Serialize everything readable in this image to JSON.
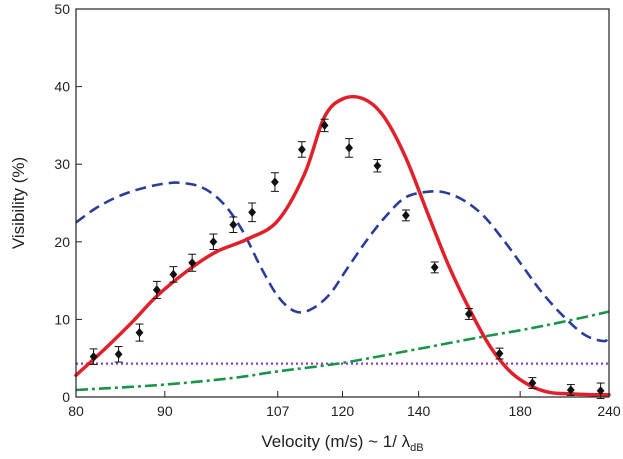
{
  "chart_data": {
    "type": "scatter",
    "title": "",
    "xlabel": "Velocity  (m/s) ~ 1/ λ",
    "xlabel_sub": "dB",
    "ylabel": "Visibility   (%)",
    "x_scale": "inverse",
    "xlim": [
      80,
      240
    ],
    "ylim": [
      0,
      50
    ],
    "x_ticks": [
      80,
      90,
      107,
      120,
      140,
      180,
      240
    ],
    "x_tick_labels": [
      "80",
      "90",
      "107",
      "120",
      "140",
      "180",
      "240"
    ],
    "y_ticks": [
      0,
      10,
      20,
      30,
      40,
      50
    ],
    "y_tick_labels": [
      "0",
      "10",
      "20",
      "30",
      "40",
      "50"
    ],
    "grid": false,
    "series": [
      {
        "name": "measured visibility",
        "kind": "points",
        "marker": "diamond",
        "color": "#111111",
        "x": [
          81.8,
          84.5,
          86.9,
          89.0,
          91.1,
          93.6,
          96.6,
          99.6,
          102.6,
          106.5,
          111.5,
          116.1,
          121.5,
          128.4,
          136.2,
          145.1,
          157.3,
          170.1,
          186.4,
          209.9,
          232.7
        ],
        "y": [
          5.2,
          5.5,
          8.3,
          13.8,
          15.8,
          17.3,
          20.0,
          22.2,
          23.8,
          27.7,
          31.9,
          35.0,
          32.1,
          29.8,
          23.4,
          16.7,
          10.7,
          5.6,
          1.8,
          0.9,
          0.8
        ],
        "err": [
          1.0,
          1.0,
          1.1,
          1.1,
          1.0,
          1.1,
          1.0,
          1.0,
          1.2,
          1.2,
          1.0,
          0.8,
          1.2,
          0.8,
          0.7,
          0.7,
          0.7,
          0.7,
          0.7,
          0.7,
          1.0
        ]
      },
      {
        "name": "red solid model",
        "kind": "line",
        "style": "solid",
        "color": "#e0202a",
        "x": [
          80,
          83,
          86,
          89,
          93,
          97,
          102,
          107,
          112,
          116,
          120,
          125,
          130,
          136,
          143,
          150,
          158,
          166,
          175,
          185,
          196,
          210,
          225,
          240
        ],
        "y": [
          2.8,
          6.2,
          9.6,
          13.0,
          16.3,
          18.7,
          20.4,
          22.7,
          28.7,
          36.0,
          38.4,
          38.4,
          36.2,
          31.0,
          23.5,
          16.8,
          11.0,
          6.5,
          3.3,
          1.5,
          0.6,
          0.4,
          0.3,
          0.3
        ]
      },
      {
        "name": "blue dashed model",
        "kind": "line",
        "style": "dashed",
        "color": "#2a3d9a",
        "x": [
          80,
          82,
          84,
          86,
          88,
          90,
          92,
          95,
          98,
          101,
          104,
          107,
          110,
          113,
          117,
          121,
          126,
          131,
          136,
          142,
          148,
          155,
          163,
          172,
          182,
          192,
          205,
          220,
          235,
          240
        ],
        "y": [
          22.5,
          24.3,
          25.6,
          26.5,
          27.1,
          27.5,
          27.6,
          27.0,
          25.0,
          21.5,
          16.8,
          13.0,
          11.1,
          11.2,
          13.1,
          16.5,
          20.4,
          23.5,
          25.7,
          26.4,
          26.4,
          25.4,
          23.4,
          20.2,
          16.6,
          13.4,
          10.4,
          8.0,
          7.2,
          7.7
        ]
      },
      {
        "name": "green dash-dot model",
        "kind": "line",
        "style": "dashdot",
        "color": "#1a9448",
        "x": [
          80,
          90,
          100,
          107,
          120,
          140,
          160,
          180,
          200,
          220,
          240
        ],
        "y": [
          0.9,
          1.6,
          2.5,
          3.3,
          4.4,
          6.2,
          7.6,
          8.6,
          9.5,
          10.3,
          11.0
        ]
      },
      {
        "name": "purple dotted level",
        "kind": "line",
        "style": "dotted",
        "color": "#8a3fc2",
        "x": [
          80,
          240
        ],
        "y": [
          4.3,
          4.3
        ]
      }
    ]
  }
}
